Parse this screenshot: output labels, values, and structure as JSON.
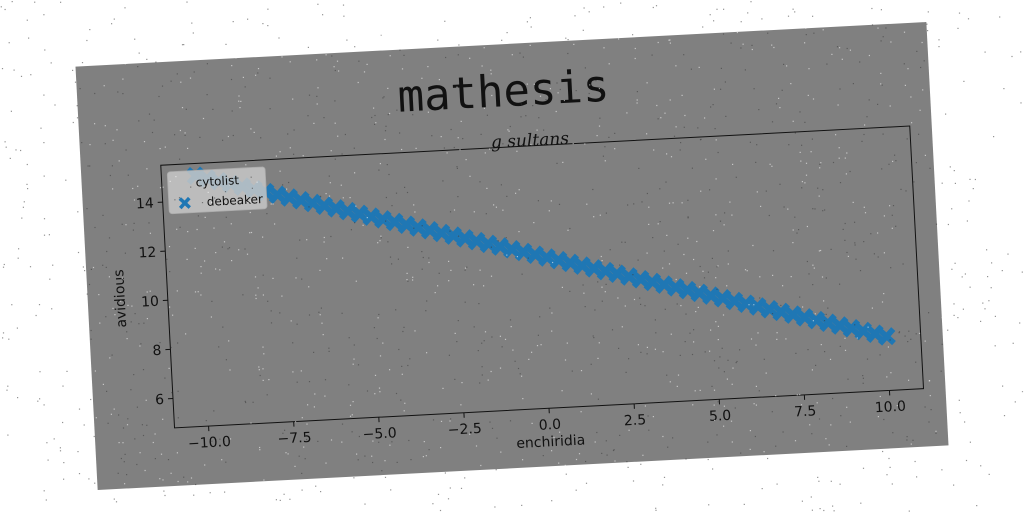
{
  "chart_data": {
    "type": "scatter",
    "title": "mathesis",
    "subtitle": "g sultans",
    "xlabel": "enchiridia",
    "ylabel": "avidious",
    "xlim": [
      -11.0,
      11.0
    ],
    "ylim": [
      4.8,
      15.5
    ],
    "xticks": [
      -10.0,
      -7.5,
      -5.0,
      -2.5,
      0.0,
      2.5,
      5.0,
      7.5,
      10.0
    ],
    "xtick_labels": [
      "−10.0",
      "−7.5",
      "−5.0",
      "−2.5",
      "0.0",
      "2.5",
      "5.0",
      "7.5",
      "10.0"
    ],
    "yticks": [
      6,
      8,
      10,
      12,
      14
    ],
    "ytick_labels": [
      "6",
      "8",
      "10",
      "12",
      "14"
    ],
    "grid": false,
    "legend_position": "upper-left",
    "series": [
      {
        "name": "cytolist",
        "marker": "x",
        "color": "#1f77b4",
        "x": [
          -10.0,
          10.0
        ],
        "y": [
          15.0,
          7.0
        ]
      },
      {
        "name": "debeaker",
        "marker": "X",
        "color": "#1f77b4",
        "x": [
          -10.0,
          10.0
        ],
        "y": [
          15.0,
          7.0
        ]
      }
    ]
  }
}
